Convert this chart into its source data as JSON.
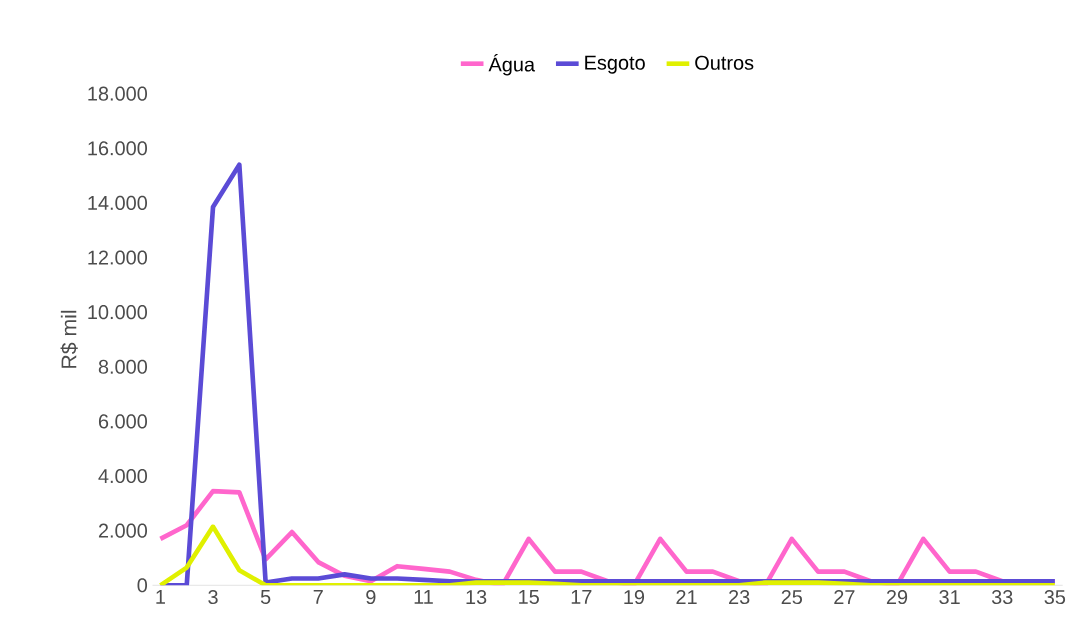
{
  "chart_data": {
    "type": "line",
    "ylabel": "R$ mil",
    "legend": "top",
    "grid": false,
    "marker": "none",
    "line_style": "solid",
    "categories": [
      "1",
      null,
      "3",
      null,
      "5",
      null,
      "7",
      null,
      "9",
      null,
      "11",
      null,
      "13",
      null,
      "15",
      null,
      "17",
      null,
      "19",
      null,
      "21",
      null,
      "23",
      null,
      "25",
      null,
      "27",
      null,
      "29",
      null,
      "31",
      null,
      "33",
      null,
      "35"
    ],
    "ylim": [
      0,
      18000
    ],
    "yticks": [
      {
        "value": 0,
        "label": "0"
      },
      {
        "value": 2000,
        "label": "2.000"
      },
      {
        "value": 4000,
        "label": "4.000"
      },
      {
        "value": 6000,
        "label": "6.000"
      },
      {
        "value": 8000,
        "label": "8.000"
      },
      {
        "value": 10000,
        "label": "10.000"
      },
      {
        "value": 12000,
        "label": "12.000"
      },
      {
        "value": 14000,
        "label": "14.000"
      },
      {
        "value": 16000,
        "label": "16.000"
      },
      {
        "value": 18000,
        "label": "18.000"
      }
    ],
    "series": [
      {
        "name": "Água",
        "color": "#ff66cc",
        "values": [
          1700,
          2200,
          3450,
          3400,
          950,
          1950,
          850,
          350,
          150,
          700,
          600,
          500,
          200,
          0,
          1700,
          500,
          500,
          150,
          0,
          1700,
          500,
          500,
          150,
          0,
          1700,
          500,
          500,
          150,
          0,
          1700,
          500,
          500,
          150,
          null,
          150
        ]
      },
      {
        "name": "Esgoto",
        "color": "#5b4bd6",
        "values": [
          0,
          0,
          13850,
          15400,
          100,
          250,
          250,
          400,
          250,
          250,
          200,
          150,
          150,
          150,
          150,
          150,
          150,
          150,
          150,
          150,
          150,
          150,
          150,
          150,
          150,
          150,
          150,
          150,
          150,
          150,
          150,
          150,
          150,
          150,
          150
        ]
      },
      {
        "name": "Outros",
        "color": "#e0f000",
        "values": [
          0,
          650,
          2150,
          550,
          0,
          0,
          0,
          0,
          0,
          0,
          0,
          0,
          100,
          100,
          100,
          50,
          0,
          0,
          0,
          0,
          0,
          0,
          0,
          100,
          100,
          100,
          50,
          0,
          0,
          0,
          0,
          0,
          0,
          0,
          0
        ]
      }
    ]
  }
}
